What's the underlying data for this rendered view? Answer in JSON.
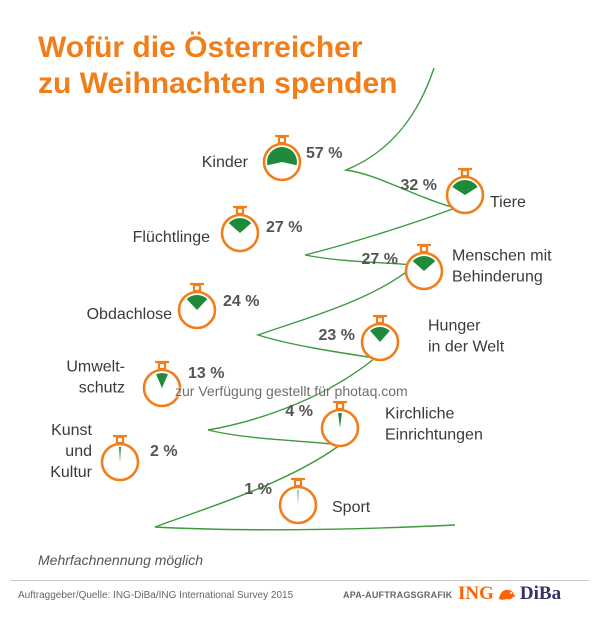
{
  "title_lines": [
    "Wofür die Österreicher",
    "zu Weihnachten spenden"
  ],
  "note": "Mehrfachnennung möglich",
  "watermark": "zur Verfügung gestellt für photaq.com",
  "source": "Auftraggeber/Quelle: ING-DiBa/ING International Survey 2015",
  "credit": "APA-AUFTRAGSGRAFIK",
  "logo": {
    "ing": "ING",
    "diba": "DiBa"
  },
  "colors": {
    "accent": "#f07e1b",
    "fill": "#1f8a3c",
    "tree": "#3d9a3d"
  },
  "chart_data": {
    "type": "pie",
    "title": "Wofür die Österreicher zu Weihnachten spenden",
    "unit": "%",
    "categories": [
      "Kinder",
      "Tiere",
      "Flüchtlinge",
      "Menschen mit Behinderung",
      "Obdachlose",
      "Hunger in der Welt",
      "Umweltschutz",
      "Kirchliche Einrichtungen",
      "Kunst und Kultur",
      "Sport"
    ],
    "label_lines": [
      [
        "Kinder"
      ],
      [
        "Tiere"
      ],
      [
        "Flüchtlinge"
      ],
      [
        "Menschen mit",
        "Behinderung"
      ],
      [
        "Obdachlose"
      ],
      [
        "Hunger",
        "in der Welt"
      ],
      [
        "Umwelt-",
        "schutz"
      ],
      [
        "Kirchliche",
        "Einrichtungen"
      ],
      [
        "Kunst",
        "und",
        "Kultur"
      ],
      [
        "Sport"
      ]
    ],
    "values": [
      57,
      32,
      27,
      27,
      24,
      23,
      13,
      4,
      2,
      1
    ],
    "value_labels": [
      "57 %",
      "32 %",
      "27 %",
      "27 %",
      "24 %",
      "23 %",
      "13 %",
      "4 %",
      "2 %",
      "1 %"
    ]
  }
}
